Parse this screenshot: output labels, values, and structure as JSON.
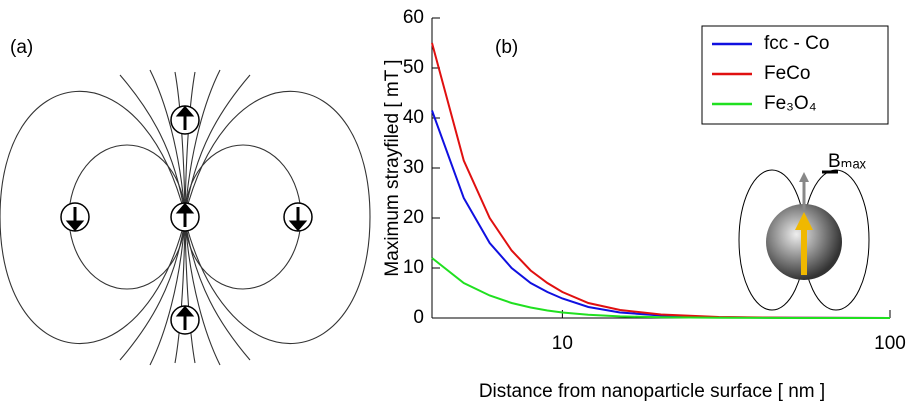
{
  "panel_a": {
    "label": "(a)"
  },
  "chart_data": {
    "type": "line",
    "label": "(b)",
    "xlabel": "Distance from nanoparticle surface [ nm ]",
    "ylabel": "Maximum strayfiled [ mT ]",
    "annotation": "Bₘₐₓ",
    "x": [
      4,
      5,
      6,
      7,
      8,
      9,
      10,
      12,
      15,
      20,
      30,
      50,
      100
    ],
    "series": [
      {
        "name": "fcc - Co",
        "color": "#1010e0",
        "values": [
          41.5,
          24,
          15,
          10,
          7,
          5.2,
          3.9,
          2.2,
          1.1,
          0.5,
          0.15,
          0.04,
          0.01
        ]
      },
      {
        "name": "FeCo",
        "color": "#e01010",
        "values": [
          55,
          31.5,
          20,
          13.5,
          9.5,
          7,
          5.2,
          3,
          1.6,
          0.7,
          0.2,
          0.05,
          0.01
        ]
      },
      {
        "name": "Fe₃O₄",
        "color": "#20e020",
        "values": [
          12,
          7,
          4.5,
          3,
          2.1,
          1.5,
          1.1,
          0.65,
          0.33,
          0.15,
          0.045,
          0.012,
          0.003
        ]
      }
    ],
    "xlim": [
      4,
      100
    ],
    "xticks": [
      10,
      100
    ],
    "xscale": "log",
    "ylim": [
      0,
      60
    ],
    "yticks": [
      0,
      10,
      20,
      30,
      40,
      50,
      60
    ],
    "legend": "upper right"
  }
}
